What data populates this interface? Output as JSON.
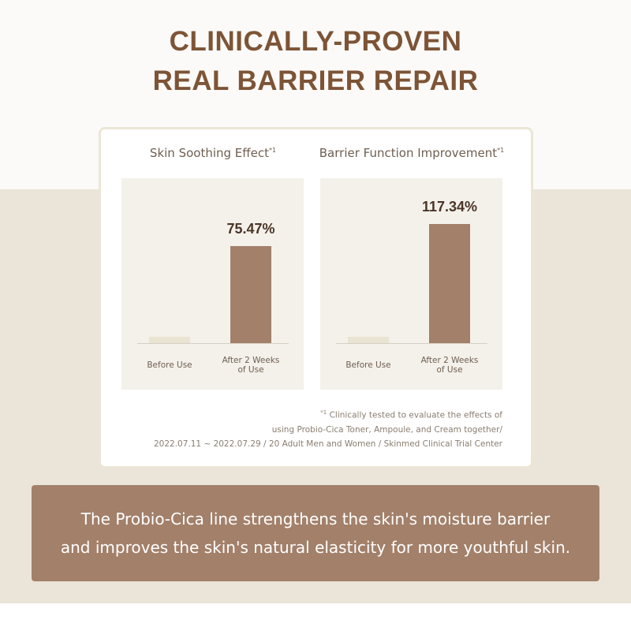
{
  "header": {
    "title_lines": [
      "CLINICALLY-PROVEN",
      "REAL BARRIER REPAIR"
    ]
  },
  "chart_data": [
    {
      "type": "bar",
      "title": "Skin Soothing Effect",
      "title_mark": "*1",
      "categories": [
        "Before Use",
        "After 2 Weeks of Use"
      ],
      "values": [
        5,
        75.47
      ],
      "value_labels": [
        null,
        "75.47%"
      ],
      "colors": [
        "#e9e3d2",
        "#a3806a"
      ],
      "ylim": [
        0,
        128
      ]
    },
    {
      "type": "bar",
      "title": "Barrier Function Improvement",
      "title_mark": "*1",
      "categories": [
        "Before Use",
        "After 2 Weeks of Use"
      ],
      "values": [
        6,
        117.34
      ],
      "value_labels": [
        null,
        "117.34%"
      ],
      "colors": [
        "#e9e3d2",
        "#a3806a"
      ],
      "ylim": [
        0,
        162
      ]
    }
  ],
  "footnote": {
    "mark": "*1",
    "lines": [
      "Clinically tested to evaluate the effects of",
      "using Probio-Cica Toner, Ampoule, and Cream together/",
      "2022.07.11 ~ 2022.07.29 / 20 Adult Men and Women / Skinmed Clinical Trial Center"
    ]
  },
  "description": {
    "lines": [
      "The Probio-Cica line strengthens the skin's moisture barrier",
      "and improves the skin's natural elasticity for more youthful skin."
    ]
  }
}
